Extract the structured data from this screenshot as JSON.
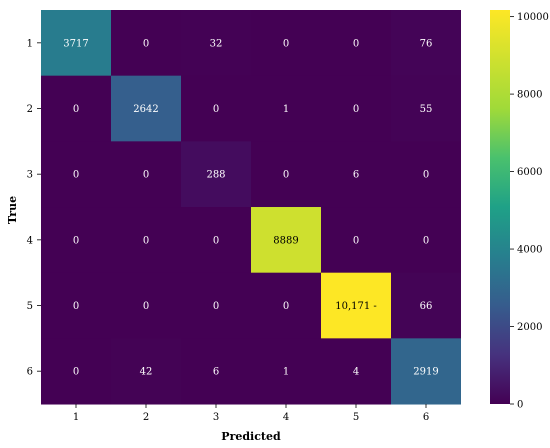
{
  "chart_data": {
    "type": "heatmap",
    "xlabel": "Predicted",
    "ylabel": "True",
    "x_categories": [
      "1",
      "2",
      "3",
      "4",
      "5",
      "6"
    ],
    "y_categories": [
      "1",
      "2",
      "3",
      "4",
      "5",
      "6"
    ],
    "values": [
      [
        3717,
        0,
        32,
        0,
        0,
        76
      ],
      [
        0,
        2642,
        0,
        1,
        0,
        55
      ],
      [
        0,
        0,
        288,
        0,
        6,
        0
      ],
      [
        0,
        0,
        0,
        8889,
        0,
        0
      ],
      [
        0,
        0,
        0,
        0,
        10171,
        66
      ],
      [
        0,
        42,
        6,
        1,
        4,
        2919
      ]
    ],
    "cell_labels": [
      [
        "3717",
        "0",
        "32",
        "0",
        "0",
        "76"
      ],
      [
        "0",
        "2642",
        "0",
        "1",
        "0",
        "55"
      ],
      [
        "0",
        "0",
        "288",
        "0",
        "6",
        "0"
      ],
      [
        "0",
        "0",
        "0",
        "8889",
        "0",
        "0"
      ],
      [
        "0",
        "0",
        "0",
        "0",
        "10,171 -",
        "66"
      ],
      [
        "0",
        "42",
        "6",
        "1",
        "4",
        "2919"
      ]
    ],
    "colorbar": {
      "colormap": "viridis",
      "range": [
        0,
        10171
      ],
      "ticks": [
        0,
        2000,
        4000,
        6000,
        8000,
        10000
      ]
    }
  }
}
